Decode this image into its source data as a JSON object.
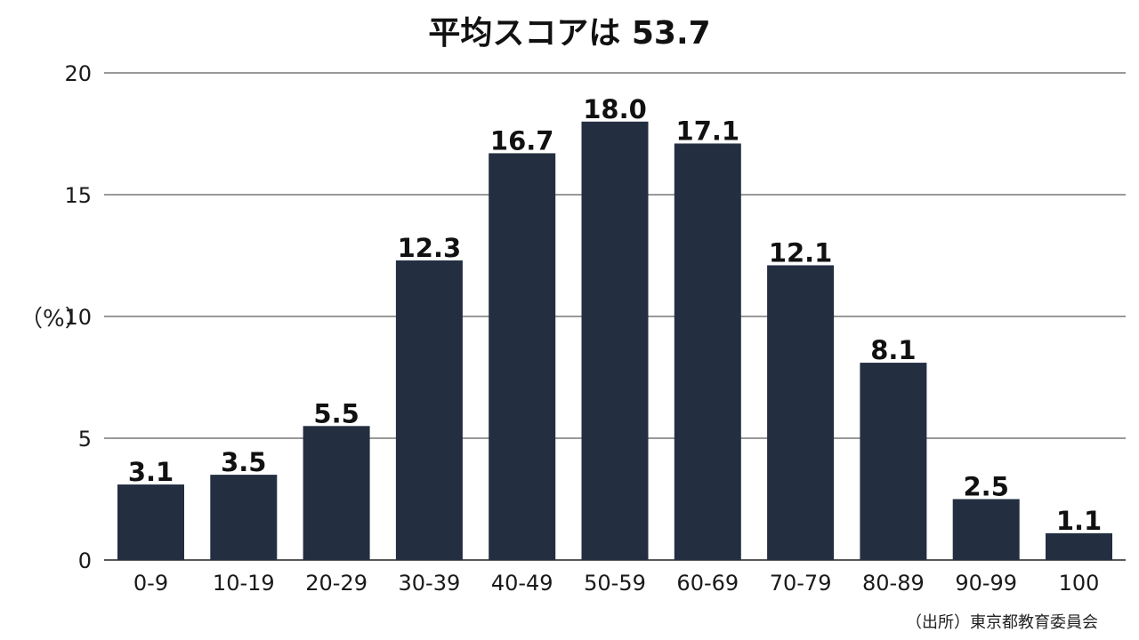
{
  "chart_data": {
    "type": "bar",
    "title": "平均スコアは 53.7",
    "ylabel": "（%）",
    "xlabel": "",
    "categories": [
      "0-9",
      "10-19",
      "20-29",
      "30-39",
      "40-49",
      "50-59",
      "60-69",
      "70-79",
      "80-89",
      "90-99",
      "100"
    ],
    "values": [
      3.1,
      3.5,
      5.5,
      12.3,
      16.7,
      18.0,
      17.1,
      12.1,
      8.1,
      2.5,
      1.1
    ],
    "value_labels": [
      "3.1",
      "3.5",
      "5.5",
      "12.3",
      "16.7",
      "18.0",
      "17.1",
      "12.1",
      "8.1",
      "2.5",
      "1.1"
    ],
    "ylim": [
      0,
      20
    ],
    "yticks": [
      0,
      5,
      10,
      15,
      20
    ],
    "grid": true,
    "bar_color": "#232f41"
  },
  "source": "（出所）東京都教育委員会"
}
